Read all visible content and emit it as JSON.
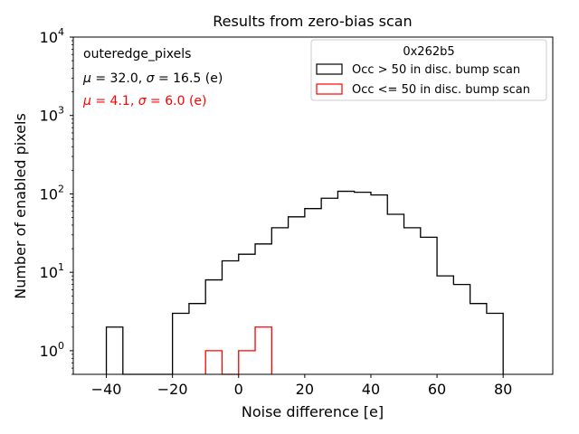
{
  "chart_data": {
    "type": "histogram",
    "title": "Results from zero-bias scan",
    "xlabel": "Noise difference [e]",
    "ylabel": "Number of enabled pixels",
    "xlim": [
      -50,
      95
    ],
    "ylim": [
      0.5,
      10000
    ],
    "yscale": "log",
    "xticks": [
      -40,
      -20,
      0,
      20,
      40,
      60,
      80
    ],
    "xtick_labels": [
      "−40",
      "−20",
      "0",
      "20",
      "40",
      "60",
      "80"
    ],
    "ytick_labels": [
      {
        "base": "10",
        "exp": "0"
      },
      {
        "base": "10",
        "exp": "1"
      },
      {
        "base": "10",
        "exp": "2"
      },
      {
        "base": "10",
        "exp": "3"
      },
      {
        "base": "10",
        "exp": "4"
      }
    ],
    "legend": {
      "title": "0x262b5",
      "position": "upper right",
      "entries": [
        "Occ > 50 in disc. bump scan",
        "Occ <= 50 in disc. bump scan"
      ]
    },
    "annotations": {
      "label": "outeredge_pixels",
      "stats_black": "μ = 32.0, σ = 16.5 (e)",
      "stats_red": "μ = 4.1, σ = 6.0 (e)"
    },
    "series": [
      {
        "name": "Occ > 50 in disc. bump scan",
        "color": "#000000",
        "bin_edges": [
          -40,
          -35,
          -30,
          -25,
          -20,
          -15,
          -10,
          -5,
          0,
          5,
          10,
          15,
          20,
          25,
          30,
          35,
          40,
          45,
          50,
          55,
          60,
          65,
          70,
          75,
          80
        ],
        "counts": [
          2,
          0,
          0,
          0,
          3,
          4,
          8,
          14,
          17,
          23,
          37,
          51,
          65,
          88,
          108,
          105,
          97,
          55,
          37,
          28,
          9,
          7,
          4,
          3
        ]
      },
      {
        "name": "Occ <= 50 in disc. bump scan",
        "color": "#ff0000",
        "bin_edges": [
          -10,
          -5,
          0,
          5,
          10
        ],
        "counts": [
          1,
          0,
          1,
          2
        ]
      }
    ]
  }
}
